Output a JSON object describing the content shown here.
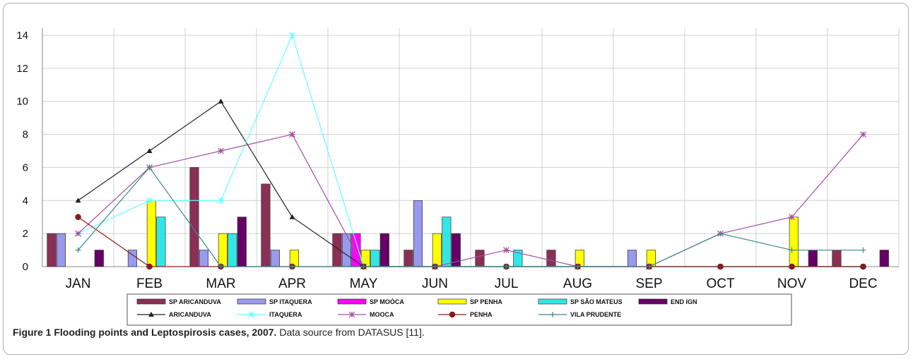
{
  "caption": {
    "bold": "Figure 1 Flooding points and Leptospirosis cases",
    "rest": ", 2007.",
    "source": " Data source from DATASUS [11]."
  },
  "chart_data": {
    "type": "bar",
    "categories": [
      "JAN",
      "FEB",
      "MAR",
      "APR",
      "MAY",
      "JUN",
      "JUL",
      "AUG",
      "SEP",
      "OCT",
      "NOV",
      "DEC"
    ],
    "ylim": [
      0,
      14
    ],
    "yticks": [
      0,
      2,
      4,
      6,
      8,
      10,
      12,
      14
    ],
    "grid": true,
    "legend_position": "bottom",
    "bar_series": [
      {
        "name": "SP ARICANDUVA",
        "color": "#8b2f55",
        "values": [
          2,
          0,
          6,
          5,
          2,
          1,
          1,
          1,
          0,
          0,
          0,
          1
        ]
      },
      {
        "name": "SP ITAQUERA",
        "color": "#9999ee",
        "values": [
          2,
          1,
          1,
          1,
          2,
          4,
          0,
          0,
          1,
          0,
          0,
          0
        ]
      },
      {
        "name": "SP MOÓCA",
        "color": "#ff00ff",
        "values": [
          0,
          0,
          0,
          0,
          2,
          0,
          0,
          0,
          0,
          0,
          0,
          0
        ]
      },
      {
        "name": "SP PENHA",
        "color": "#ffff00",
        "values": [
          0,
          4,
          2,
          1,
          1,
          2,
          0,
          1,
          1,
          0,
          3,
          0
        ]
      },
      {
        "name": "SP SÃO MATEUS",
        "color": "#33e6e6",
        "values": [
          0,
          3,
          2,
          0,
          1,
          3,
          1,
          0,
          0,
          0,
          0,
          0
        ]
      },
      {
        "name": "END IGN",
        "color": "#660066",
        "values": [
          1,
          0,
          3,
          0,
          2,
          2,
          0,
          0,
          0,
          0,
          1,
          1
        ]
      }
    ],
    "line_series": [
      {
        "name": "ARICANDUVA",
        "color": "#222222",
        "marker": "triangle",
        "values": [
          4,
          7,
          10,
          3,
          0,
          0,
          0,
          0,
          0,
          0,
          0,
          0
        ]
      },
      {
        "name": "ITAQUERA",
        "color": "#66ffff",
        "marker": "star",
        "values": [
          2,
          4,
          4,
          14,
          0,
          0,
          0,
          0,
          0,
          0,
          0,
          0
        ]
      },
      {
        "name": "MOOCA",
        "color": "#a050a0",
        "marker": "asterisk",
        "values": [
          2,
          6,
          7,
          8,
          0,
          0,
          1,
          0,
          0,
          2,
          3,
          8
        ]
      },
      {
        "name": "PENHA",
        "color": "#8b1a1a",
        "marker": "circle",
        "values": [
          3,
          0,
          0,
          0,
          0,
          0,
          0,
          0,
          0,
          0,
          0,
          0
        ]
      },
      {
        "name": "VILA PRUDENTE",
        "color": "#3d8a8a",
        "marker": "plus",
        "values": [
          1,
          6,
          0,
          0,
          0,
          0,
          0,
          0,
          0,
          2,
          1,
          1
        ]
      }
    ]
  }
}
